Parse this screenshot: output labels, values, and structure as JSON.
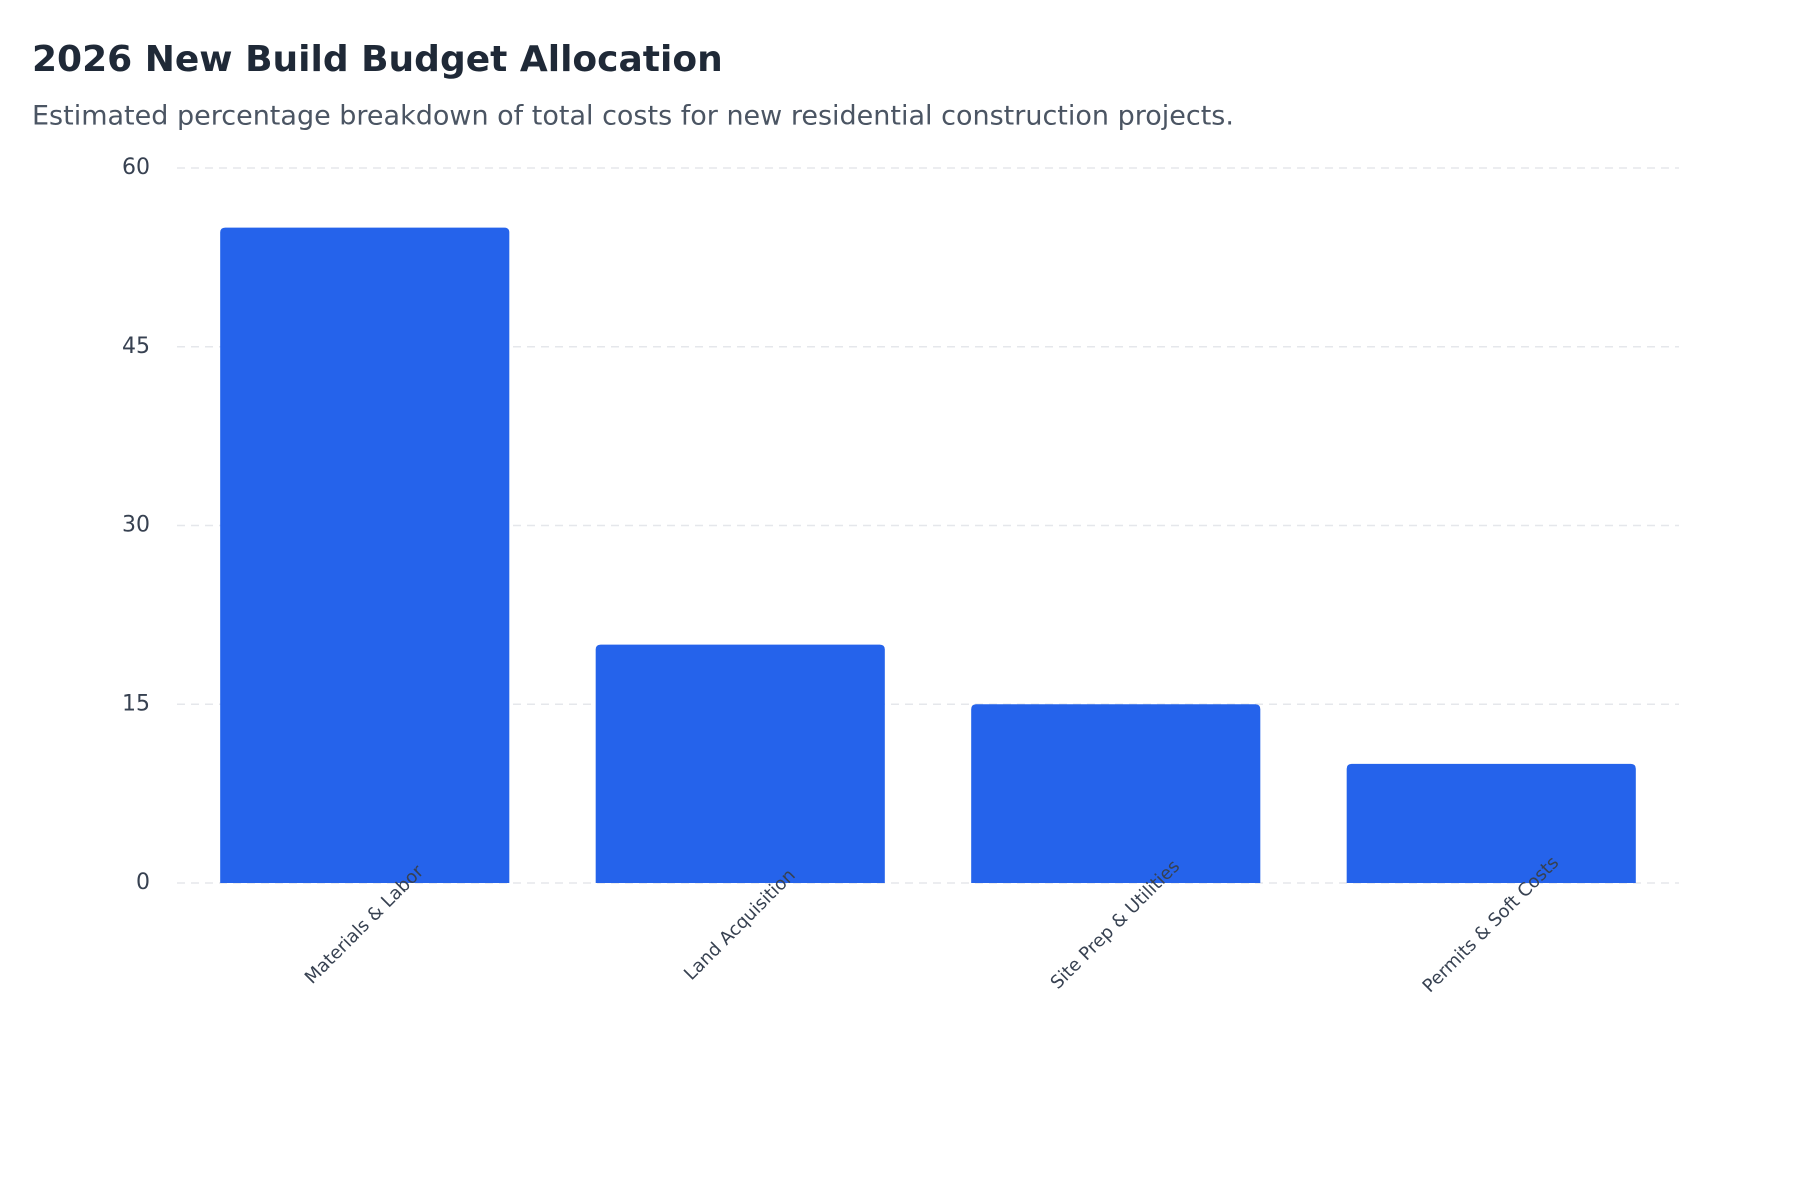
{
  "chart_data": {
    "type": "bar",
    "title": "2026 New Build Budget Allocation",
    "subtitle": "Estimated percentage breakdown of total costs for new residential construction projects.",
    "categories": [
      "Materials & Labor",
      "Land Acquisition",
      "Site Prep & Utilities",
      "Permits & Soft Costs"
    ],
    "values": [
      55,
      20,
      15,
      10
    ],
    "color": "#2563eb",
    "ylim": [
      0,
      60
    ],
    "yticks": [
      0,
      15,
      30,
      45,
      60
    ],
    "grid": true
  }
}
